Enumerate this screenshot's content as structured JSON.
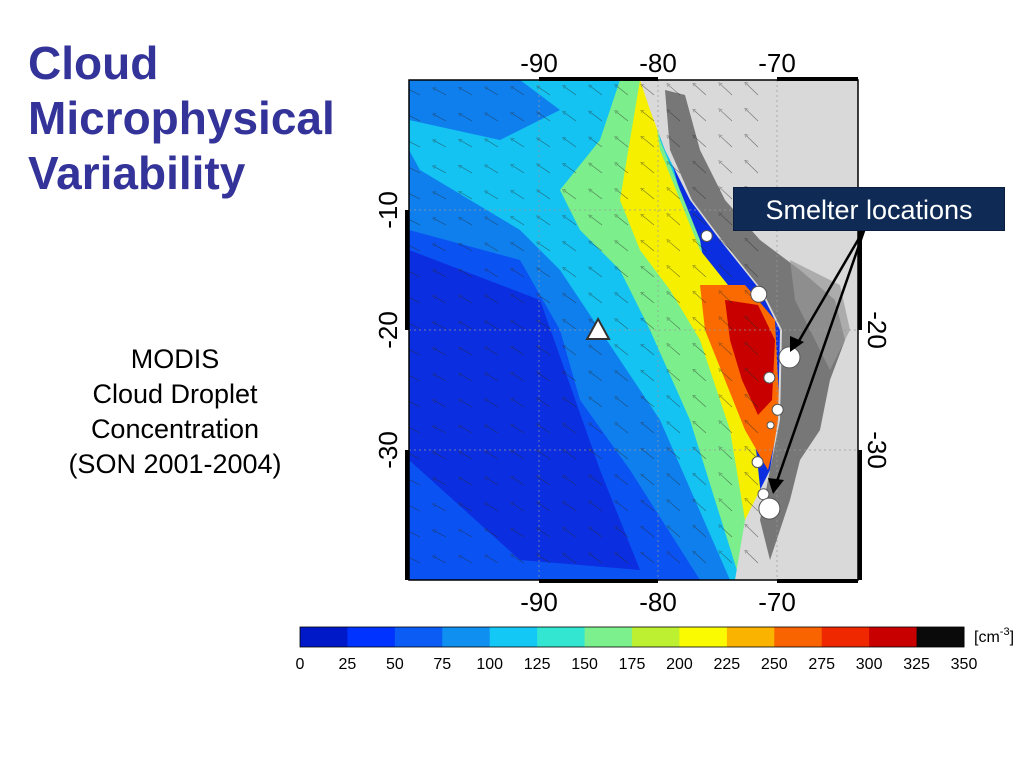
{
  "slide": {
    "title_lines": [
      "Cloud",
      "Microphysical",
      "Variability"
    ],
    "caption_lines": [
      "MODIS",
      "Cloud Droplet",
      "Concentration",
      "(SON 2001-2004)"
    ],
    "callout": "Smelter locations"
  },
  "map": {
    "lon_range": [
      -101,
      -63
    ],
    "lat_range": [
      1,
      -41
    ],
    "lon_ticks": [
      "-90",
      "-80",
      "-70"
    ],
    "lat_ticks_left": [
      "-10",
      "-20",
      "-30"
    ],
    "lat_ticks_right": [
      "-20",
      "-30"
    ],
    "triangle_marker": {
      "lon": -85,
      "lat": -20
    },
    "smelters": [
      {
        "lon": -75.8,
        "lat": -12.1,
        "size": "small"
      },
      {
        "lon": -71.4,
        "lat": -17.0,
        "size": "medium"
      },
      {
        "lon": -68.8,
        "lat": -22.3,
        "size": "large"
      },
      {
        "lon": -70.5,
        "lat": -24.0,
        "size": "small"
      },
      {
        "lon": -69.8,
        "lat": -26.7,
        "size": "small"
      },
      {
        "lon": -70.4,
        "lat": -28.0,
        "size": "tiny"
      },
      {
        "lon": -71.5,
        "lat": -31.1,
        "size": "small"
      },
      {
        "lon": -71.0,
        "lat": -33.8,
        "size": "small"
      },
      {
        "lon": -70.5,
        "lat": -35.0,
        "size": "large"
      }
    ],
    "colors": {
      "land": "#d9d9d9",
      "frame": "#000000"
    }
  },
  "colorbar": {
    "unit_text": "[cm",
    "unit_exp": "-3",
    "unit_close": "]",
    "ticks": [
      "0",
      "25",
      "50",
      "75",
      "100",
      "125",
      "150",
      "175",
      "200",
      "225",
      "250",
      "275",
      "300",
      "325",
      "350"
    ],
    "colors": [
      "#0019c8",
      "#0033ff",
      "#0a5cf5",
      "#0f8ff0",
      "#14c8f5",
      "#32e6d2",
      "#7cf08c",
      "#bef032",
      "#fafa00",
      "#fab400",
      "#fa6400",
      "#f02800",
      "#c80000",
      "#0a0a0a"
    ]
  }
}
